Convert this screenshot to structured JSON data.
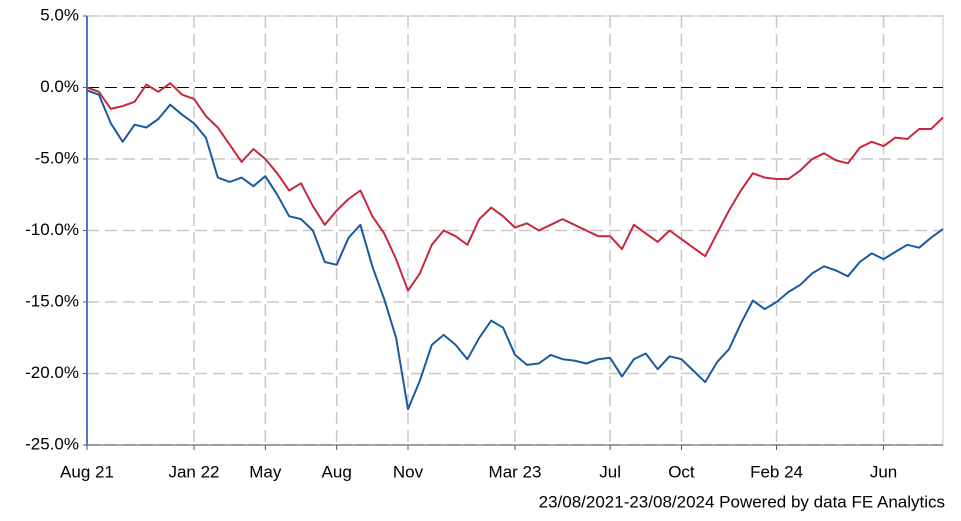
{
  "chart_data": {
    "type": "line",
    "categories": [
      "Aug 21",
      null,
      null,
      null,
      null,
      null,
      null,
      null,
      null,
      "Jan 22",
      null,
      null,
      null,
      null,
      null,
      "May",
      null,
      null,
      null,
      null,
      null,
      "Aug",
      null,
      null,
      null,
      null,
      null,
      "Nov",
      null,
      null,
      null,
      null,
      null,
      null,
      null,
      null,
      "Mar 23",
      null,
      null,
      null,
      null,
      null,
      null,
      null,
      "Jul",
      null,
      null,
      null,
      null,
      null,
      "Oct",
      null,
      null,
      null,
      null,
      null,
      null,
      null,
      "Feb 24",
      null,
      null,
      null,
      null,
      null,
      null,
      null,
      null,
      "Jun",
      null,
      null,
      null,
      null,
      null
    ],
    "series": [
      {
        "color": "#c8283c",
        "values": [
          0,
          -0.3,
          -1.5,
          -1.3,
          -1.0,
          0.2,
          -0.3,
          0.3,
          -0.5,
          -0.8,
          -2.0,
          -2.8,
          -4.0,
          -5.2,
          -4.3,
          -5.0,
          -6.0,
          -7.2,
          -6.7,
          -8.3,
          -9.6,
          -8.6,
          -7.8,
          -7.2,
          -9.0,
          -10.2,
          -12.0,
          -14.2,
          -13.0,
          -11.0,
          -10.0,
          -10.4,
          -11.0,
          -9.2,
          -8.4,
          -9.0,
          -9.8,
          -9.5,
          -10.0,
          -9.6,
          -9.2,
          -9.6,
          -10.0,
          -10.4,
          -10.4,
          -11.3,
          -9.6,
          -10.2,
          -10.8,
          -10.0,
          -10.6,
          -11.2,
          -11.8,
          -10.2,
          -8.6,
          -7.2,
          -6.0,
          -6.3,
          -6.4,
          -6.4,
          -5.8,
          -5.0,
          -4.6,
          -5.1,
          -5.3,
          -4.2,
          -3.8,
          -4.1,
          -3.5,
          -3.6,
          -2.9,
          -2.9,
          -2.1
        ]
      },
      {
        "color": "#1a5a9e",
        "values": [
          -0.2,
          -0.5,
          -2.5,
          -3.8,
          -2.6,
          -2.8,
          -2.2,
          -1.2,
          -1.9,
          -2.5,
          -3.5,
          -6.3,
          -6.6,
          -6.3,
          -6.9,
          -6.2,
          -7.5,
          -9.0,
          -9.2,
          -10.0,
          -12.2,
          -12.4,
          -10.5,
          -9.6,
          -12.5,
          -14.8,
          -17.5,
          -22.5,
          -20.5,
          -18.0,
          -17.3,
          -18.0,
          -19.0,
          -17.5,
          -16.3,
          -16.8,
          -18.7,
          -19.4,
          -19.3,
          -18.7,
          -19.0,
          -19.1,
          -19.3,
          -19.0,
          -18.9,
          -20.2,
          -19.0,
          -18.6,
          -19.7,
          -18.8,
          -19.0,
          -19.8,
          -20.6,
          -19.2,
          -18.3,
          -16.5,
          -14.9,
          -15.5,
          -15.0,
          -14.3,
          -13.8,
          -13.0,
          -12.5,
          -12.8,
          -13.2,
          -12.2,
          -11.6,
          -12.0,
          -11.5,
          -11.0,
          -11.2,
          -10.5,
          -9.9
        ]
      }
    ],
    "ylim": [
      -25,
      5
    ],
    "yticks": [
      {
        "value": 5,
        "label": "5.0%"
      },
      {
        "value": 0,
        "label": "0.0%"
      },
      {
        "value": -5,
        "label": "-5.0%"
      },
      {
        "value": -10,
        "label": "-10.0%"
      },
      {
        "value": -15,
        "label": "-15.0%"
      },
      {
        "value": -20,
        "label": "-20.0%"
      },
      {
        "value": -25,
        "label": "-25.0%"
      }
    ],
    "grid": true,
    "footer": "23/08/2021-23/08/2024 Powered by data FE Analytics"
  }
}
